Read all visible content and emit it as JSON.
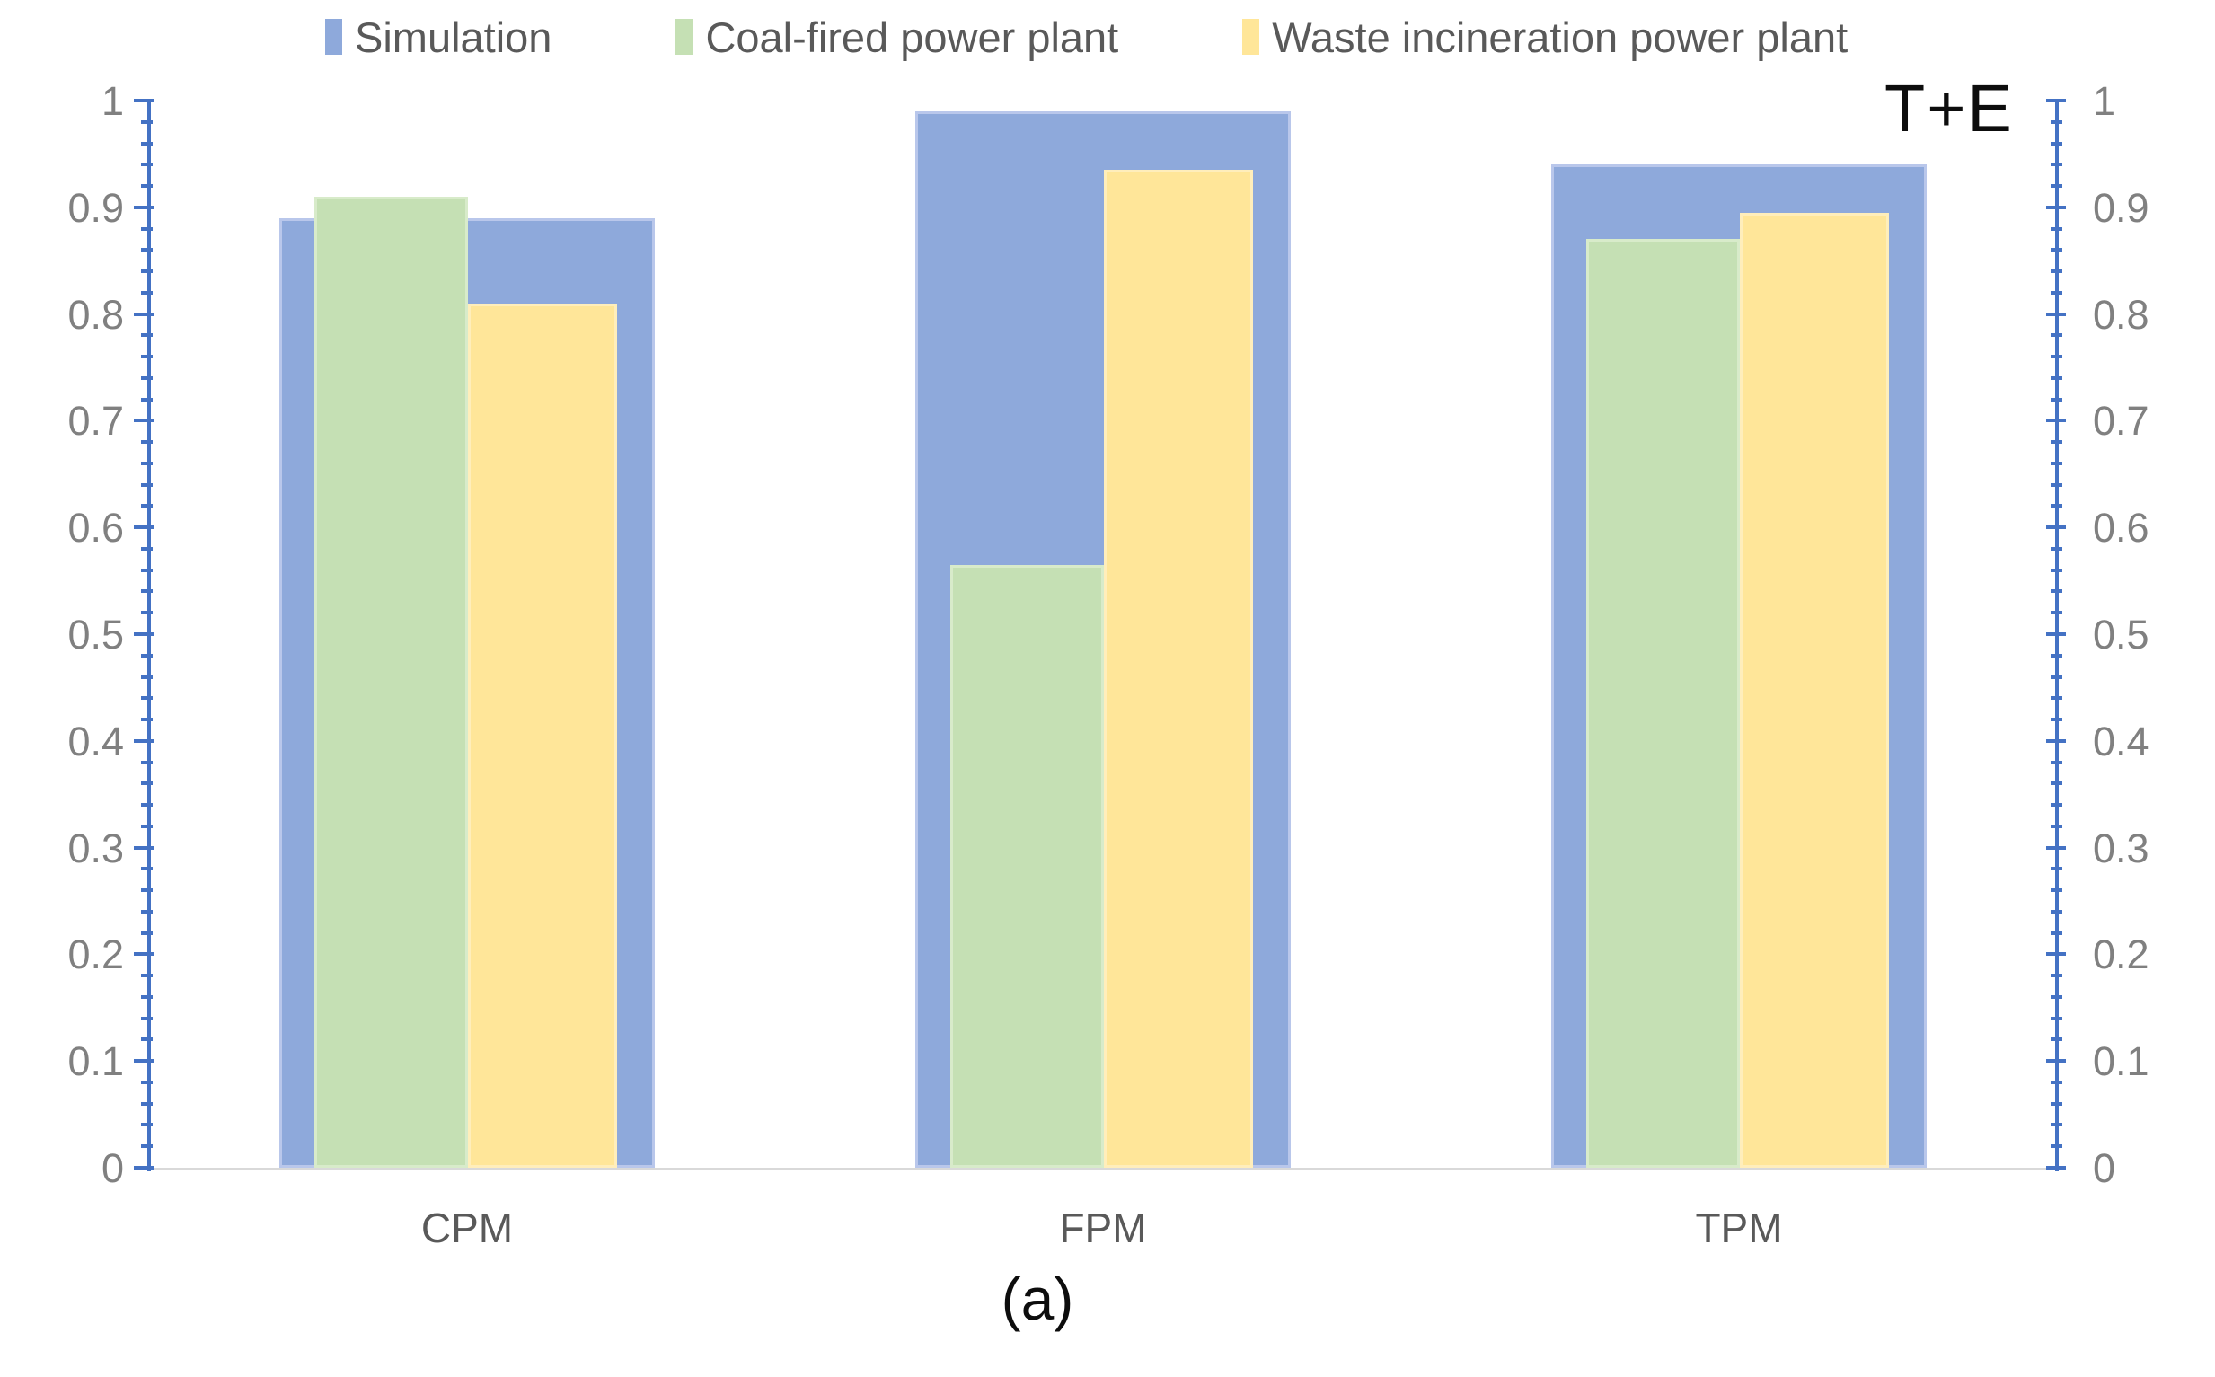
{
  "chart_data": {
    "type": "bar",
    "title": "",
    "categories": [
      "CPM",
      "FPM",
      "TPM"
    ],
    "series": [
      {
        "name": "Simulation",
        "color": "#8EA9DB",
        "values": [
          0.89,
          0.99,
          0.94
        ]
      },
      {
        "name": "Coal-fired power plant",
        "color": "#C5E0B4",
        "values": [
          0.91,
          0.565,
          0.87
        ]
      },
      {
        "name": "Waste incineration power plant",
        "color": "#FFE699",
        "values": [
          0.81,
          0.935,
          0.895
        ]
      }
    ],
    "y_axis": {
      "min": 0,
      "max": 1,
      "major_tick_labels": [
        "0",
        "0.1",
        "0.2",
        "0.3",
        "0.4",
        "0.5",
        "0.6",
        "0.7",
        "0.8",
        "0.9",
        "1"
      ],
      "major_step": 0.1,
      "minor_step": 0.02,
      "dual_axis": true
    },
    "xlabel": "",
    "ylabel": "",
    "legend_position": "top",
    "grid": false,
    "annotation": "T+E",
    "caption": "(a)"
  },
  "colors": {
    "axis": "#4472C4",
    "axis_label_text": "#808080",
    "category_label_text": "#595959",
    "legend_text": "#595959",
    "baseline": "#D9D9D9",
    "annotation_text": "#0d0d0d"
  }
}
